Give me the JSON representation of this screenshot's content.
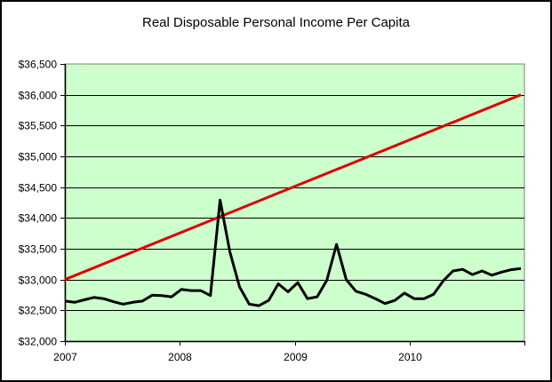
{
  "chart_data": {
    "type": "line",
    "title": "Real Disposable Personal Income Per Capita",
    "xlabel": "",
    "ylabel": "",
    "ylim": [
      32000,
      36500
    ],
    "y_ticks": [
      "$32,000",
      "$32,500",
      "$33,000",
      "$33,500",
      "$34,000",
      "$34,500",
      "$35,000",
      "$35,500",
      "$36,000",
      "$36,500"
    ],
    "y_tick_values": [
      32000,
      32500,
      33000,
      33500,
      34000,
      34500,
      35000,
      35500,
      36000,
      36500
    ],
    "x_ticks": [
      "2007",
      "2008",
      "2009",
      "2010"
    ],
    "x_range": [
      "2007-01",
      "2011-01"
    ],
    "grid": "horizontal",
    "legend": "none",
    "plot_background": "#ccffcc",
    "x": [
      "2007-01",
      "2007-02",
      "2007-03",
      "2007-04",
      "2007-05",
      "2007-06",
      "2007-07",
      "2007-08",
      "2007-09",
      "2007-10",
      "2007-11",
      "2007-12",
      "2008-01",
      "2008-02",
      "2008-03",
      "2008-04",
      "2008-05",
      "2008-06",
      "2008-07",
      "2008-08",
      "2008-09",
      "2008-10",
      "2008-11",
      "2008-12",
      "2009-01",
      "2009-02",
      "2009-03",
      "2009-04",
      "2009-05",
      "2009-06",
      "2009-07",
      "2009-08",
      "2009-09",
      "2009-10",
      "2009-11",
      "2009-12",
      "2010-01",
      "2010-02",
      "2010-03",
      "2010-04",
      "2010-05",
      "2010-06",
      "2010-07",
      "2010-08",
      "2010-09",
      "2010-10",
      "2010-11",
      "2010-12"
    ],
    "series": [
      {
        "name": "Real Disposable Personal Income Per Capita",
        "color": "#000000",
        "values": [
          32650,
          32630,
          32670,
          32710,
          32690,
          32640,
          32600,
          32630,
          32650,
          32745,
          32740,
          32720,
          32840,
          32820,
          32820,
          32740,
          34290,
          33450,
          32880,
          32600,
          32575,
          32660,
          32930,
          32800,
          32950,
          32690,
          32720,
          32990,
          33570,
          33000,
          32810,
          32760,
          32690,
          32610,
          32660,
          32780,
          32690,
          32690,
          32760,
          32980,
          33140,
          33165,
          33080,
          33140,
          33070,
          33120,
          33160,
          33180
        ]
      },
      {
        "name": "Trend",
        "color": "#dd0000",
        "values": [
          33000,
          36000
        ],
        "note": "linear trend from first to last month"
      }
    ]
  }
}
